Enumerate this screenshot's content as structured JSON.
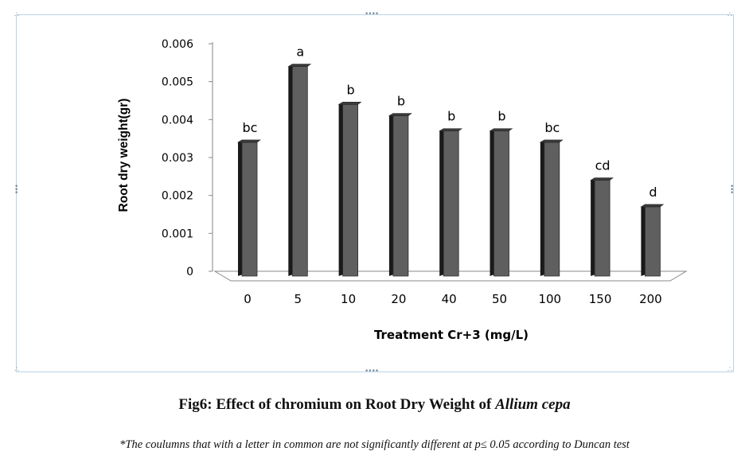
{
  "chart_data": {
    "type": "bar",
    "categories": [
      "0",
      "5",
      "10",
      "20",
      "40",
      "50",
      "100",
      "150",
      "200"
    ],
    "values": [
      0.0034,
      0.0054,
      0.0044,
      0.0041,
      0.0037,
      0.0037,
      0.0034,
      0.0024,
      0.0017
    ],
    "significance_letters": [
      "bc",
      "a",
      "b",
      "b",
      "b",
      "b",
      "bc",
      "cd",
      "d"
    ],
    "xlabel": "Treatment Cr+3 (mg/L)",
    "ylabel": "Root dry weight(gr)",
    "ylim": [
      0,
      0.006
    ],
    "yticks": [
      "0",
      "0.001",
      "0.002",
      "0.003",
      "0.004",
      "0.005",
      "0.006"
    ],
    "grid": false,
    "bar_color": "#5f5f5f"
  },
  "caption": {
    "prefix": "Fig6: Effect of chromium on Root Dry Weight of ",
    "species": "Allium cepa"
  },
  "note": "*The coulumns  that with a letter in common are not significantly different at p≤ 0.05 according to Duncan test"
}
